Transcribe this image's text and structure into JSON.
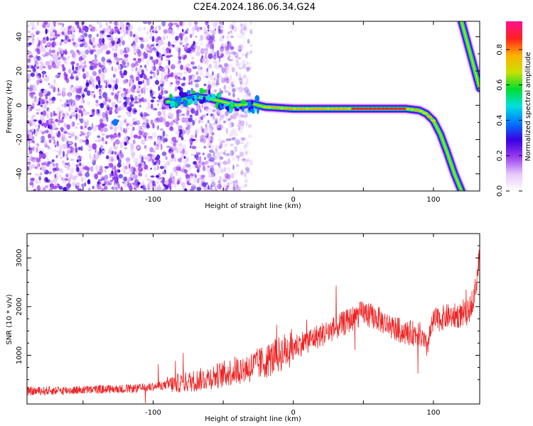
{
  "title": "C2E4.2024.186.06.34.G24",
  "colors": {
    "snr_line": "#ee2222",
    "colormap": [
      "#ffffff",
      "#e6c8fa",
      "#9a3cf0",
      "#3a00e0",
      "#0078ff",
      "#00e0e0",
      "#00dd30",
      "#c8e000",
      "#ffb000",
      "#ff2020",
      "#ff1090"
    ]
  },
  "chart_data": [
    {
      "type": "heatmap",
      "xlabel": "Height of straight line (km)",
      "ylabel": "Frequency (Hz)",
      "xlim": [
        -190,
        133
      ],
      "ylim": [
        -50,
        49
      ],
      "x_ticks": [
        "-100",
        "0",
        "100"
      ],
      "y_ticks": [
        "-40",
        "-20",
        "0",
        "20",
        "40"
      ],
      "colorbar": {
        "label": "Normalized spectral amplitude",
        "range": [
          0,
          0.96
        ],
        "ticks": [
          "0.0",
          "0.2",
          "0.4",
          "0.6",
          "0.8"
        ]
      },
      "noise_region": {
        "x": [
          -190,
          -30
        ],
        "y": [
          -50,
          49
        ]
      },
      "trace": {
        "x": [
          -90,
          -80,
          -70,
          -60,
          -50,
          -40,
          -30,
          -20,
          0,
          20,
          40,
          60,
          80,
          90,
          95,
          100,
          105,
          110,
          115,
          120
        ],
        "y": [
          2,
          3,
          5,
          4,
          2,
          0,
          1,
          -1,
          -2,
          -2,
          -2,
          -2,
          -2,
          -3,
          -5,
          -9,
          -17,
          -28,
          -40,
          -50
        ]
      },
      "upper_trace": {
        "x": [
          120,
          133
        ],
        "y": [
          49,
          10
        ]
      }
    },
    {
      "type": "line",
      "xlabel": "Height of straight line (km)",
      "ylabel": "SNR (10 * v/v)",
      "xlim": [
        -190,
        133
      ],
      "ylim": [
        0,
        3500
      ],
      "x_ticks": [
        "-100",
        "0",
        "100"
      ],
      "y_ticks": [
        "1000",
        "2000",
        "3000"
      ],
      "series": [
        {
          "x": [
            -190,
            -150,
            -110,
            -90,
            -70,
            -50,
            -40,
            -30,
            -20,
            -10,
            0,
            10,
            20,
            30,
            40,
            50,
            60,
            70,
            80,
            90,
            95,
            100,
            110,
            120,
            125,
            130,
            133
          ],
          "y": [
            260,
            290,
            320,
            390,
            480,
            610,
            700,
            760,
            870,
            1020,
            1180,
            1300,
            1420,
            1560,
            1720,
            1880,
            1760,
            1580,
            1460,
            1450,
            1150,
            1700,
            1800,
            1820,
            1880,
            2350,
            3100
          ]
        }
      ]
    }
  ]
}
